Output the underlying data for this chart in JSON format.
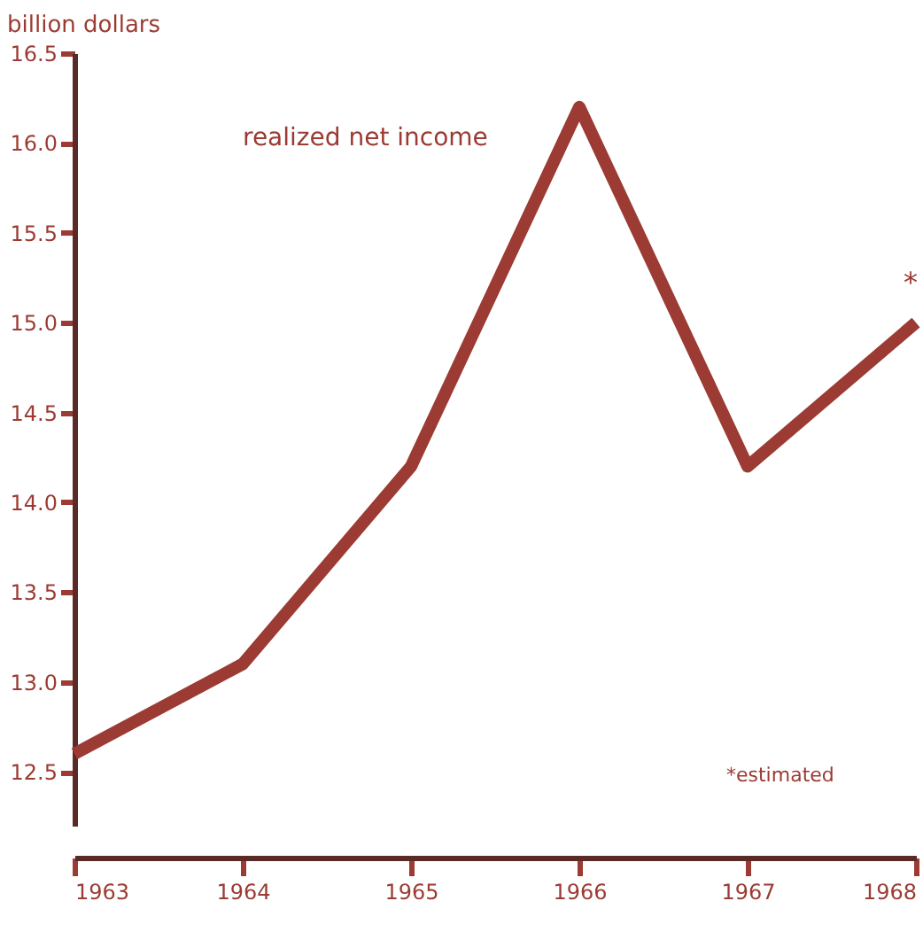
{
  "chart_data": {
    "type": "line",
    "ylabel": "billion dollars",
    "x": [
      1963,
      1964,
      1965,
      1966,
      1967,
      1968
    ],
    "series": [
      {
        "name": "realized net income",
        "color": "#9b3b33",
        "values": [
          12.6,
          13.1,
          14.2,
          16.2,
          14.2,
          15.0
        ]
      }
    ],
    "xlim": [
      1963,
      1968
    ],
    "xticks": [
      1963,
      1964,
      1965,
      1966,
      1967,
      1968
    ],
    "ylim": [
      12.2,
      16.5
    ],
    "yticks": [
      {
        "value": 12.5,
        "label": "12.5"
      },
      {
        "value": 13,
        "label": "13.0"
      },
      {
        "value": 13.5,
        "label": "13.5"
      },
      {
        "value": 14,
        "label": "14.0"
      },
      {
        "value": 14.5,
        "label": "14.5"
      },
      {
        "value": 15,
        "label": "15.0"
      },
      {
        "value": 15.5,
        "label": "15.5"
      },
      {
        "value": 16,
        "label": "16.0"
      },
      {
        "value": 16.5,
        "label": "16.5"
      }
    ],
    "grid": false,
    "marker": "none",
    "line_style": "solid",
    "annotations": [
      {
        "text": "*",
        "x": 1968,
        "y": 15.0
      },
      "*estimated"
    ]
  }
}
